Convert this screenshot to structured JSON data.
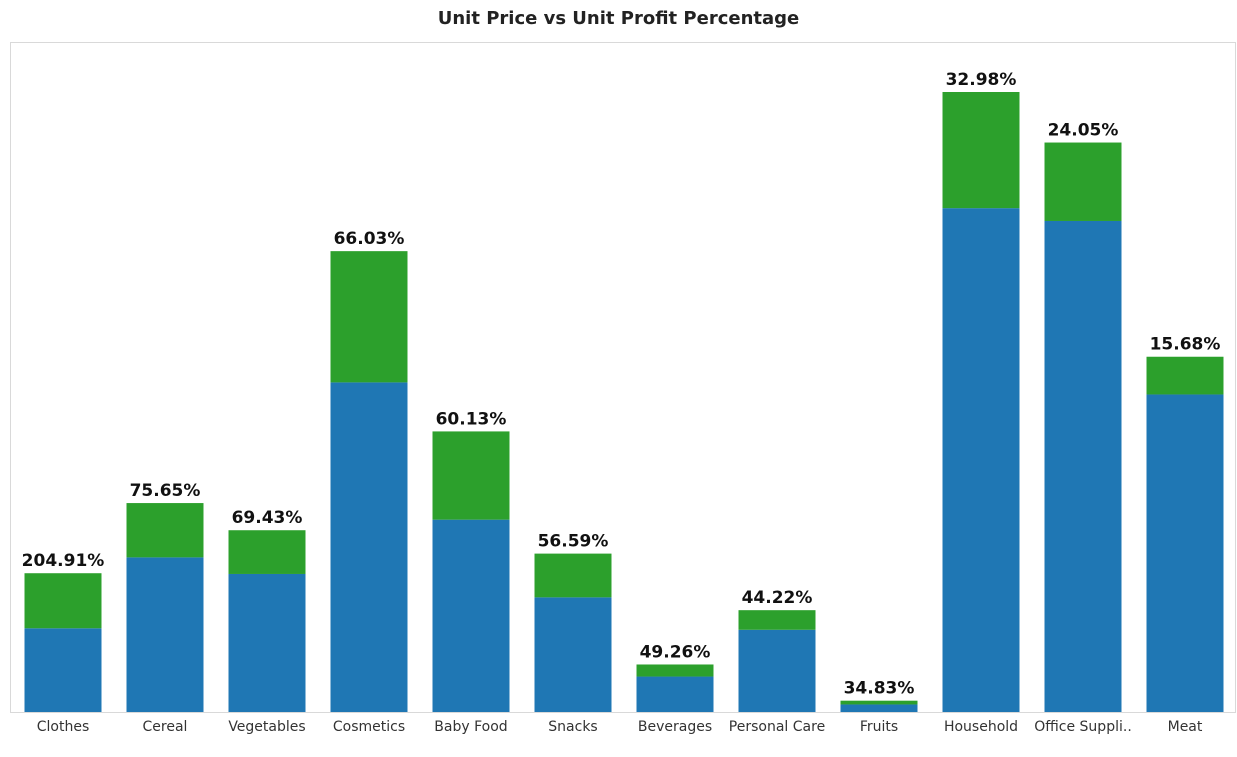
{
  "chart_data": {
    "type": "bar",
    "stacked": true,
    "title": "Unit Price vs Unit Profit Percentage",
    "xlabel": "",
    "ylabel": "",
    "categories": [
      "Clothes",
      "Cereal",
      "Vegetables",
      "Cosmetics",
      "Baby Food",
      "Snacks",
      "Beverages",
      "Personal Care",
      "Fruits",
      "Household",
      "Office Suppli..",
      "Meat"
    ],
    "data_labels": [
      "204.91%",
      "75.65%",
      "69.43%",
      "66.03%",
      "60.13%",
      "56.59%",
      "49.26%",
      "44.22%",
      "34.83%",
      "32.98%",
      "24.05%",
      "15.68%"
    ],
    "series": [
      {
        "color": "#1f77b4",
        "values": [
          111,
          205,
          183,
          437,
          255,
          152,
          47,
          109,
          10,
          668,
          651,
          421
        ]
      },
      {
        "color": "#2ca02c",
        "values": [
          73,
          72,
          58,
          174,
          117,
          58,
          16,
          26,
          5,
          154,
          104,
          50
        ]
      }
    ],
    "ylim": [
      0,
      822
    ],
    "grid": false,
    "legend": "none"
  }
}
